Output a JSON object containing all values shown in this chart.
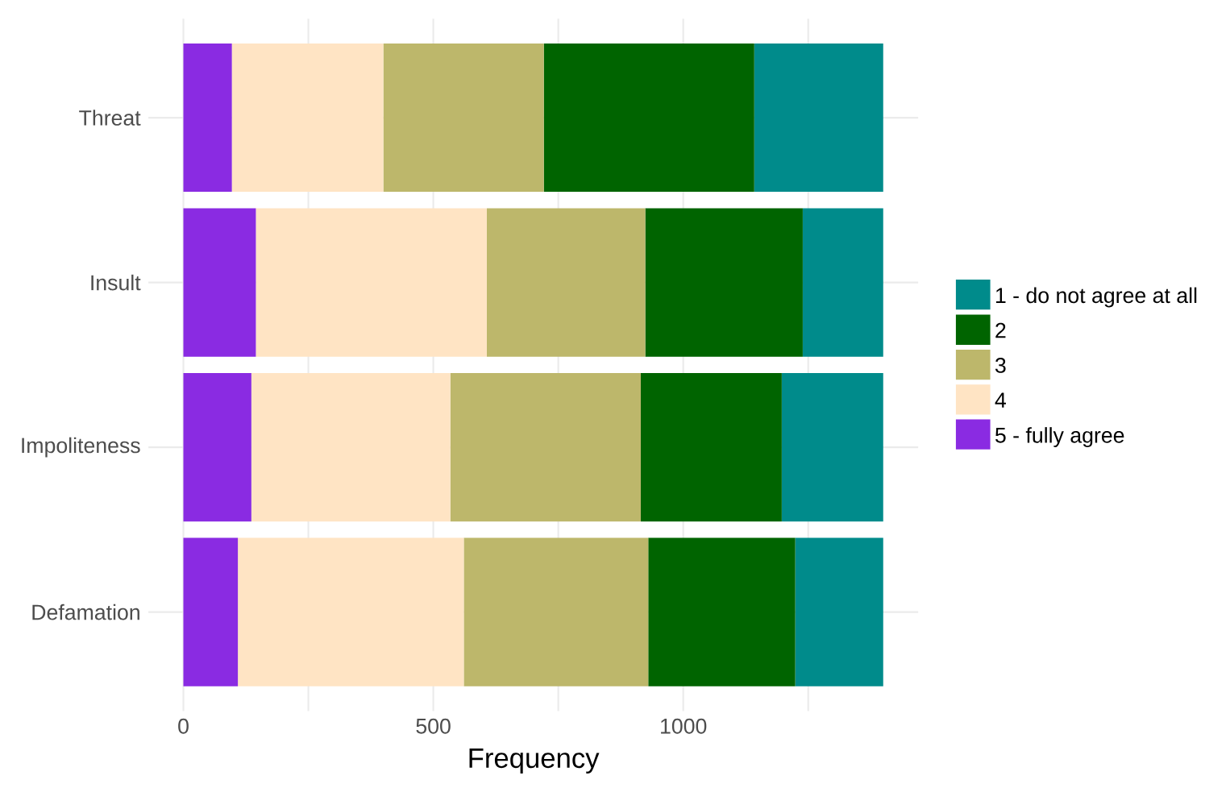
{
  "chart_data": {
    "type": "bar",
    "orientation": "horizontal",
    "stacked": true,
    "categories": [
      "Threat",
      "Insult",
      "Impoliteness",
      "Defamation"
    ],
    "xlabel": "Frequency",
    "series": [
      {
        "name": "5 - fully agree",
        "color": "#8a2be2",
        "values": [
          97,
          145,
          136,
          109
        ]
      },
      {
        "name": "4",
        "color": "#ffe4c4",
        "values": [
          303,
          462,
          398,
          452
        ]
      },
      {
        "name": "3",
        "color": "#bdb76b",
        "values": [
          321,
          317,
          381,
          369
        ]
      },
      {
        "name": "2",
        "color": "#006400",
        "values": [
          421,
          315,
          282,
          294
        ]
      },
      {
        "name": "1 - do not agree at all",
        "color": "#008b8b",
        "values": [
          258,
          161,
          203,
          176
        ]
      }
    ],
    "xlim": [
      -70,
      1470
    ],
    "xticks": [
      0,
      {
        "value": 250,
        "label": null
      },
      500,
      {
        "value": 750,
        "label": null
      },
      1000,
      {
        "value": 1250,
        "label": null
      }
    ],
    "grid": true,
    "legend": "right"
  }
}
